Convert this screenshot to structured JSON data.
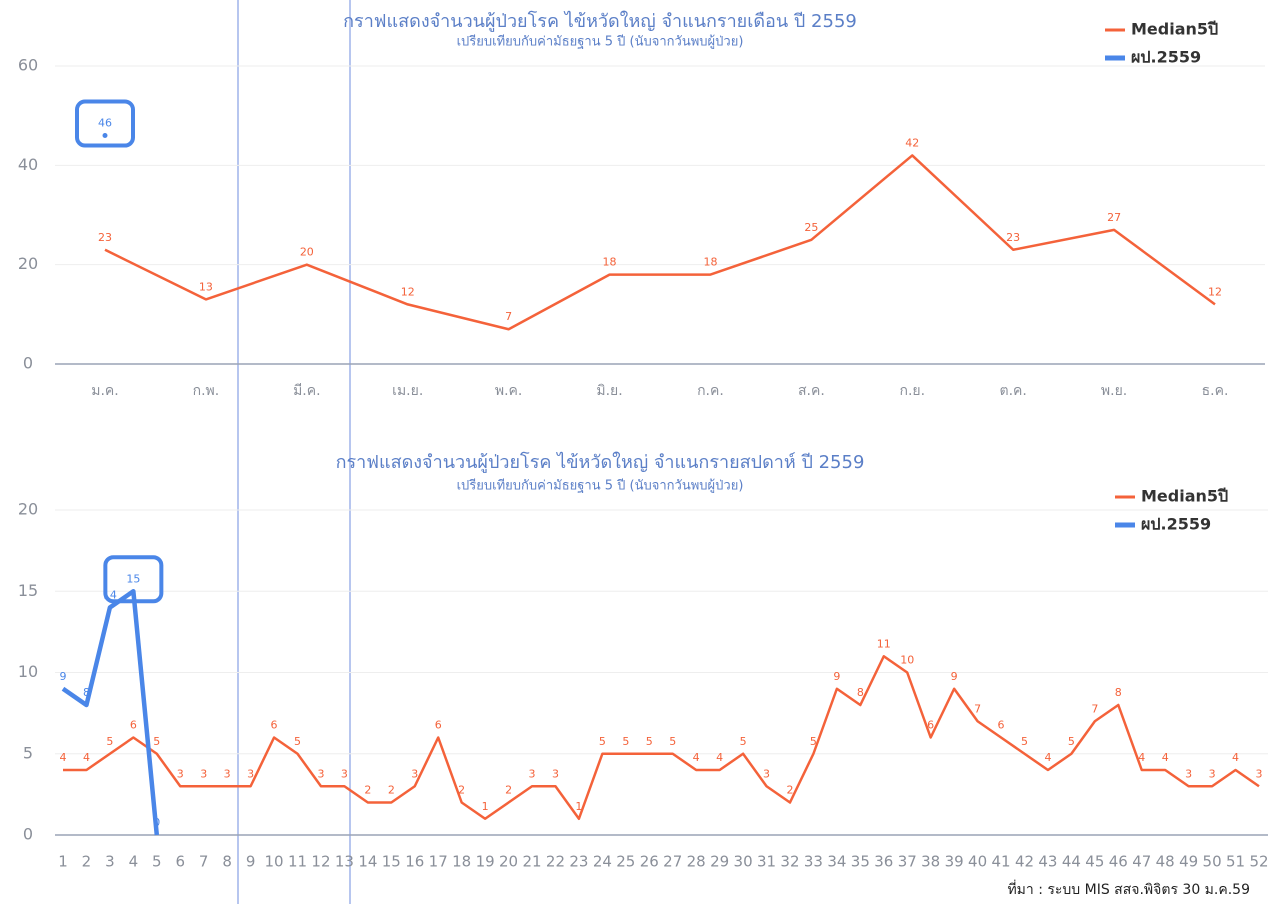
{
  "chart_data": [
    {
      "type": "line",
      "title": "กราฟแสดงจำนวนผู้ป่วยโรค ไข้หวัดใหญ่ จำแนกรายเดือน ปี 2559",
      "subtitle": "เปรียบเทียบกับค่ามัธยฐาน 5 ปี (นับจากวันพบผู้ป่วย)",
      "categories": [
        "ม.ค.",
        "ก.พ.",
        "มี.ค.",
        "เม.ย.",
        "พ.ค.",
        "มิ.ย.",
        "ก.ค.",
        "ส.ค.",
        "ก.ย.",
        "ต.ค.",
        "พ.ย.",
        "ธ.ค."
      ],
      "series": [
        {
          "name": "Median5ปี",
          "color": "#f4623a",
          "values": [
            23,
            13,
            20,
            12,
            7,
            18,
            18,
            25,
            42,
            23,
            27,
            12
          ]
        },
        {
          "name": "ผป.2559",
          "color": "#4a86e8",
          "values": [
            46,
            null,
            null,
            null,
            null,
            null,
            null,
            null,
            null,
            null,
            null,
            null
          ]
        }
      ],
      "ylim": [
        0,
        60
      ],
      "yticks": [
        0,
        20,
        40,
        60
      ],
      "grid": true,
      "legend": "top-right"
    },
    {
      "type": "line",
      "title": "กราฟแสดงจำนวนผู้ป่วยโรค ไข้หวัดใหญ่ จำแนกรายสปดาห์ ปี 2559",
      "subtitle": "เปรียบเทียบกับค่ามัธยฐาน 5 ปี (นับจากวันพบผู้ป่วย)",
      "categories": [
        1,
        2,
        3,
        4,
        5,
        6,
        7,
        8,
        9,
        10,
        11,
        12,
        13,
        14,
        15,
        16,
        17,
        18,
        19,
        20,
        21,
        22,
        23,
        24,
        25,
        26,
        27,
        28,
        29,
        30,
        31,
        32,
        33,
        34,
        35,
        36,
        37,
        38,
        39,
        40,
        41,
        42,
        43,
        44,
        45,
        46,
        47,
        48,
        49,
        50,
        51,
        52
      ],
      "series": [
        {
          "name": "Median5ปี",
          "color": "#f4623a",
          "values": [
            4,
            4,
            5,
            6,
            5,
            3,
            3,
            3,
            3,
            6,
            5,
            3,
            3,
            2,
            2,
            3,
            6,
            2,
            1,
            2,
            3,
            3,
            1,
            5,
            5,
            5,
            5,
            4,
            4,
            5,
            3,
            2,
            5,
            9,
            8,
            11,
            10,
            6,
            9,
            7,
            6,
            5,
            4,
            5,
            7,
            8,
            4,
            4,
            3,
            3,
            4,
            3
          ]
        },
        {
          "name": "ผป.2559",
          "color": "#4a86e8",
          "values": [
            9,
            8,
            14,
            15,
            0,
            null,
            null,
            null,
            null,
            null,
            null,
            null,
            null,
            null,
            null,
            null,
            null,
            null,
            null,
            null,
            null,
            null,
            null,
            null,
            null,
            null,
            null,
            null,
            null,
            null,
            null,
            null,
            null,
            null,
            null,
            null,
            null,
            null,
            null,
            null,
            null,
            null,
            null,
            null,
            null,
            null,
            null,
            null,
            null,
            null,
            null,
            null
          ]
        }
      ],
      "ylim": [
        0,
        20
      ],
      "yticks": [
        0,
        5,
        10,
        15,
        20
      ],
      "grid": true,
      "legend": "top-right",
      "source": "ที่มา : ระบบ MIS สสจ.พิจิตร  30 ม.ค.59"
    }
  ]
}
